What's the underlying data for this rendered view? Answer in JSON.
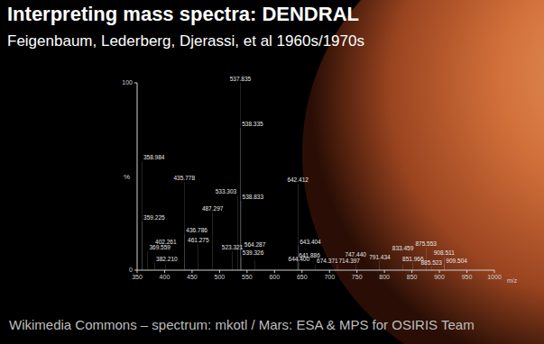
{
  "chart_data": {
    "type": "bar",
    "title": "Interpreting mass spectra: DENDRAL",
    "subtitle": "Feigenbaum, Lederberg, Djerassi, et al 1960s/1970s",
    "annotations": [
      "Wikimedia Commons – spectrum: mkotl / Mars: ESA & MPS for OSIRIS Team"
    ],
    "x_label": "m/z",
    "y_label": "%",
    "x": [
      358.984,
      359.225,
      369.559,
      382.21,
      402.261,
      435.778,
      436.786,
      461.275,
      487.297,
      523.321,
      533.303,
      537.835,
      538.335,
      538.833,
      539.326,
      564.287,
      641.886,
      642.412,
      643.404,
      644.4,
      674.371,
      714.397,
      747.44,
      791.434,
      833.459,
      851.966,
      875.553,
      885.523,
      908.511,
      909.504
    ],
    "values": [
      58,
      26,
      10,
      4,
      3,
      47,
      19,
      14,
      31,
      10,
      40,
      100,
      76,
      37,
      7,
      5,
      6,
      46,
      13,
      4,
      3,
      3,
      3,
      5,
      3,
      4,
      12,
      2,
      7,
      3
    ],
    "labels": [
      "358.984",
      "359.225",
      "369.559",
      "382.210",
      "402.261",
      "435.778",
      "436.786",
      "461.275",
      "487.297",
      "523.321",
      "533.303",
      "537.835",
      "538.335",
      "538.833",
      "539.326",
      "564.287",
      "641.886",
      "642.412",
      "643.404",
      "644.400",
      "674.371",
      "714.397",
      "747.440",
      "791.434",
      "833.459",
      "851.966",
      "875.553",
      "885.523",
      "908.511",
      "909.504"
    ],
    "color": "#ffffff",
    "xlim": [
      350,
      1000
    ],
    "xticks": [
      350,
      400,
      450,
      500,
      550,
      600,
      650,
      700,
      750,
      800,
      850,
      900,
      950,
      1000
    ],
    "ylim": [
      0,
      100
    ],
    "yticks": [
      0,
      100
    ]
  }
}
